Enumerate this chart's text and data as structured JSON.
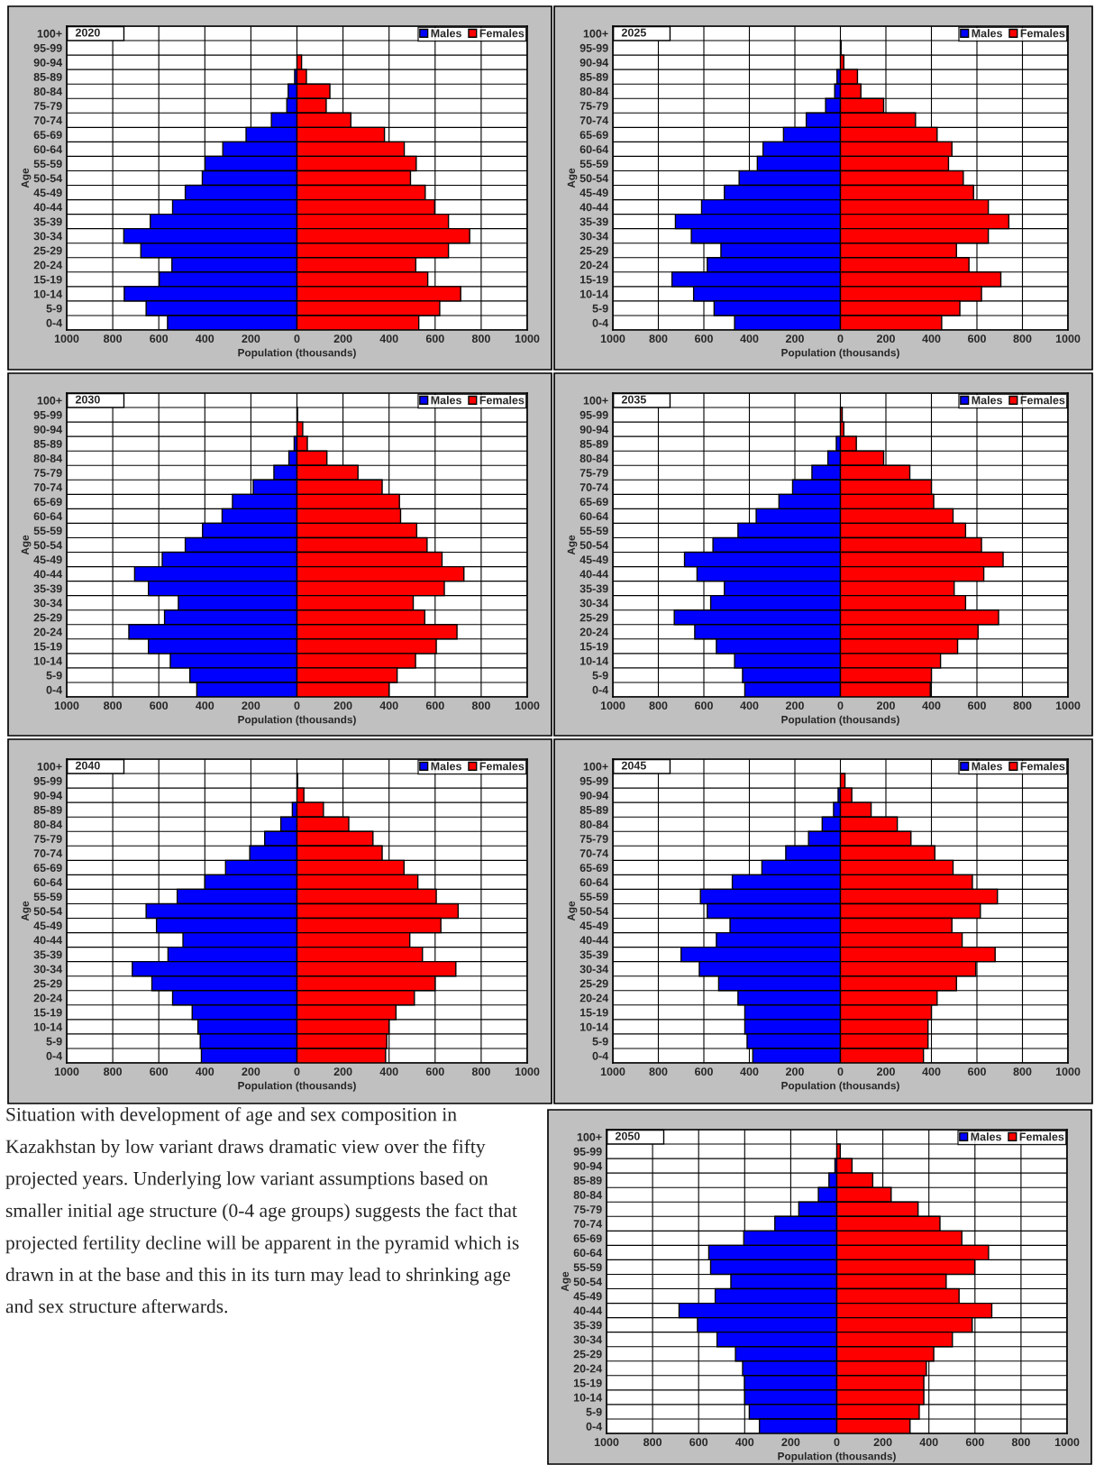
{
  "chart_data": [
    {
      "type": "bar",
      "orientation": "horizontal",
      "stacked": true,
      "title": "2020",
      "xlabel": "Population (thousands)",
      "ylabel": "Age",
      "categories": [
        "100+",
        "95-99",
        "90-94",
        "85-89",
        "80-84",
        "75-79",
        "70-74",
        "65-69",
        "60-64",
        "55-59",
        "50-54",
        "45-49",
        "40-44",
        "35-39",
        "30-34",
        "25-29",
        "20-24",
        "15-19",
        "10-14",
        "5-9",
        "0-4"
      ],
      "xlim": [
        -1000,
        1000
      ],
      "xticks": [
        {
          "value": -1000,
          "label": "1000"
        },
        {
          "value": -800,
          "label": "800"
        },
        {
          "value": -600,
          "label": "600"
        },
        {
          "value": -400,
          "label": "400"
        },
        {
          "value": -200,
          "label": "200"
        },
        0,
        200,
        400,
        600,
        800,
        1000
      ],
      "grid": true,
      "legend": "top right",
      "series": [
        {
          "name": "Males",
          "color": "#0000ff",
          "values": [
            0,
            0,
            0,
            -10,
            -38,
            -44,
            -111,
            -221,
            -322,
            -399,
            -411,
            -485,
            -540,
            -637,
            -752,
            -678,
            -543,
            -598,
            -750,
            -655,
            -562
          ]
        },
        {
          "name": "Females",
          "color": "#ff0000",
          "values": [
            0,
            0,
            20,
            41,
            143,
            127,
            234,
            380,
            466,
            518,
            493,
            557,
            598,
            658,
            750,
            658,
            516,
            568,
            711,
            620,
            529
          ]
        }
      ]
    },
    {
      "type": "bar",
      "orientation": "horizontal",
      "stacked": true,
      "title": "2025",
      "xlabel": "Population (thousands)",
      "ylabel": "Age",
      "categories": [
        "100+",
        "95-99",
        "90-94",
        "85-89",
        "80-84",
        "75-79",
        "70-74",
        "65-69",
        "60-64",
        "55-59",
        "50-54",
        "45-49",
        "40-44",
        "35-39",
        "30-34",
        "25-29",
        "20-24",
        "15-19",
        "10-14",
        "5-9",
        "0-4"
      ],
      "xlim": [
        -1000,
        1000
      ],
      "xticks": [
        {
          "value": -1000,
          "label": "1000"
        },
        {
          "value": -800,
          "label": "800"
        },
        {
          "value": -600,
          "label": "600"
        },
        {
          "value": -400,
          "label": "400"
        },
        {
          "value": -200,
          "label": "200"
        },
        0,
        200,
        400,
        600,
        800,
        1000
      ],
      "grid": true,
      "legend": "top right",
      "series": [
        {
          "name": "Males",
          "color": "#0000ff",
          "values": [
            0,
            0,
            0,
            -15,
            -25,
            -65,
            -150,
            -250,
            -340,
            -365,
            -445,
            -510,
            -610,
            -725,
            -655,
            -525,
            -585,
            -740,
            -645,
            -555,
            -465
          ]
        },
        {
          "name": "Females",
          "color": "#ff0000",
          "values": [
            0,
            3,
            15,
            75,
            90,
            190,
            330,
            425,
            490,
            475,
            540,
            585,
            650,
            740,
            650,
            510,
            565,
            705,
            620,
            525,
            445
          ]
        }
      ]
    },
    {
      "type": "bar",
      "orientation": "horizontal",
      "stacked": true,
      "title": "2030",
      "xlabel": "Population (thousands)",
      "ylabel": "Age",
      "categories": [
        "100+",
        "95-99",
        "90-94",
        "85-89",
        "80-84",
        "75-79",
        "70-74",
        "65-69",
        "60-64",
        "55-59",
        "50-54",
        "45-49",
        "40-44",
        "35-39",
        "30-34",
        "25-29",
        "20-24",
        "15-19",
        "10-14",
        "5-9",
        "0-4"
      ],
      "xlim": [
        -1000,
        1000
      ],
      "xticks": [
        {
          "value": -1000,
          "label": "1000"
        },
        {
          "value": -800,
          "label": "800"
        },
        {
          "value": -600,
          "label": "600"
        },
        {
          "value": -400,
          "label": "400"
        },
        {
          "value": -200,
          "label": "200"
        },
        0,
        200,
        400,
        600,
        800,
        1000
      ],
      "grid": true,
      "legend": "top right",
      "series": [
        {
          "name": "Males",
          "color": "#0000ff",
          "values": [
            0,
            0,
            0,
            -12,
            -35,
            -100,
            -190,
            -280,
            -325,
            -410,
            -485,
            -585,
            -705,
            -645,
            -515,
            -575,
            -730,
            -645,
            -550,
            -465,
            -435
          ]
        },
        {
          "name": "Females",
          "color": "#ff0000",
          "values": [
            0,
            3,
            25,
            45,
            130,
            265,
            370,
            445,
            450,
            520,
            565,
            630,
            725,
            640,
            505,
            555,
            695,
            605,
            515,
            435,
            400
          ]
        }
      ]
    },
    {
      "type": "bar",
      "orientation": "horizontal",
      "stacked": true,
      "title": "2035",
      "xlabel": "Population (thousands)",
      "ylabel": "Age",
      "categories": [
        "100+",
        "95-99",
        "90-94",
        "85-89",
        "80-84",
        "75-79",
        "70-74",
        "65-69",
        "60-64",
        "55-59",
        "50-54",
        "45-49",
        "40-44",
        "35-39",
        "30-34",
        "25-29",
        "20-24",
        "15-19",
        "10-14",
        "5-9",
        "0-4"
      ],
      "xlim": [
        -1000,
        1000
      ],
      "xticks": [
        {
          "value": -1000,
          "label": "1000"
        },
        {
          "value": -800,
          "label": "800"
        },
        {
          "value": -600,
          "label": "600"
        },
        {
          "value": -400,
          "label": "400"
        },
        {
          "value": -200,
          "label": "200"
        },
        0,
        200,
        400,
        600,
        800,
        1000
      ],
      "grid": true,
      "legend": "top right",
      "series": [
        {
          "name": "Males",
          "color": "#0000ff",
          "values": [
            0,
            0,
            0,
            -18,
            -55,
            -125,
            -210,
            -270,
            -370,
            -450,
            -560,
            -685,
            -630,
            -510,
            -570,
            -730,
            -640,
            -545,
            -465,
            -430,
            -420
          ]
        },
        {
          "name": "Females",
          "color": "#ff0000",
          "values": [
            0,
            8,
            15,
            70,
            190,
            305,
            400,
            410,
            495,
            550,
            620,
            715,
            630,
            500,
            550,
            695,
            605,
            515,
            440,
            400,
            395
          ]
        }
      ]
    },
    {
      "type": "bar",
      "orientation": "horizontal",
      "stacked": true,
      "title": "2040",
      "xlabel": "Population (thousands)",
      "ylabel": "Age",
      "categories": [
        "100+",
        "95-99",
        "90-94",
        "85-89",
        "80-84",
        "75-79",
        "70-74",
        "65-69",
        "60-64",
        "55-59",
        "50-54",
        "45-49",
        "40-44",
        "35-39",
        "30-34",
        "25-29",
        "20-24",
        "15-19",
        "10-14",
        "5-9",
        "0-4"
      ],
      "xlim": [
        -1000,
        1000
      ],
      "xticks": [
        {
          "value": -1000,
          "label": "1000"
        },
        {
          "value": -800,
          "label": "800"
        },
        {
          "value": -600,
          "label": "600"
        },
        {
          "value": -400,
          "label": "400"
        },
        {
          "value": -200,
          "label": "200"
        },
        0,
        200,
        400,
        600,
        800,
        1000
      ],
      "grid": true,
      "legend": "top right",
      "series": [
        {
          "name": "Males",
          "color": "#0000ff",
          "values": [
            0,
            0,
            0,
            -20,
            -70,
            -140,
            -205,
            -310,
            -400,
            -520,
            -655,
            -610,
            -495,
            -560,
            -715,
            -630,
            -540,
            -455,
            -430,
            -420,
            -415
          ]
        },
        {
          "name": "Females",
          "color": "#ff0000",
          "values": [
            0,
            3,
            30,
            115,
            225,
            330,
            370,
            465,
            525,
            605,
            700,
            625,
            490,
            545,
            690,
            600,
            510,
            430,
            400,
            390,
            385
          ]
        }
      ]
    },
    {
      "type": "bar",
      "orientation": "horizontal",
      "stacked": true,
      "title": "2045",
      "xlabel": "Population (thousands)",
      "ylabel": "Age",
      "categories": [
        "100+",
        "95-99",
        "90-94",
        "85-89",
        "80-84",
        "75-79",
        "70-74",
        "65-69",
        "60-64",
        "55-59",
        "50-54",
        "45-49",
        "40-44",
        "35-39",
        "30-34",
        "25-29",
        "20-24",
        "15-19",
        "10-14",
        "5-9",
        "0-4"
      ],
      "xlim": [
        -1000,
        1000
      ],
      "xticks": [
        {
          "value": -1000,
          "label": "1000"
        },
        {
          "value": -800,
          "label": "800"
        },
        {
          "value": -600,
          "label": "600"
        },
        {
          "value": -400,
          "label": "400"
        },
        {
          "value": -200,
          "label": "200"
        },
        0,
        200,
        400,
        600,
        800,
        1000
      ],
      "grid": true,
      "legend": "top right",
      "series": [
        {
          "name": "Males",
          "color": "#0000ff",
          "values": [
            0,
            0,
            -10,
            -30,
            -80,
            -140,
            -240,
            -345,
            -475,
            -615,
            -585,
            -485,
            -545,
            -700,
            -620,
            -535,
            -450,
            -420,
            -420,
            -410,
            -385
          ]
        },
        {
          "name": "Females",
          "color": "#ff0000",
          "values": [
            0,
            20,
            50,
            135,
            250,
            310,
            415,
            495,
            580,
            690,
            615,
            490,
            535,
            680,
            595,
            510,
            425,
            400,
            385,
            385,
            365
          ]
        }
      ]
    },
    {
      "type": "bar",
      "orientation": "horizontal",
      "stacked": true,
      "title": "2050",
      "xlabel": "Population (thousands)",
      "ylabel": "Age",
      "categories": [
        "100+",
        "95-99",
        "90-94",
        "85-89",
        "80-84",
        "75-79",
        "70-74",
        "65-69",
        "60-64",
        "55-59",
        "50-54",
        "45-49",
        "40-44",
        "35-39",
        "30-34",
        "25-29",
        "20-24",
        "15-19",
        "10-14",
        "5-9",
        "0-4"
      ],
      "xlim": [
        -1000,
        1000
      ],
      "xticks": [
        {
          "value": -1000,
          "label": "1000"
        },
        {
          "value": -800,
          "label": "800"
        },
        {
          "value": -600,
          "label": "600"
        },
        {
          "value": -400,
          "label": "400"
        },
        {
          "value": -200,
          "label": "200"
        },
        0,
        200,
        400,
        600,
        800,
        1000
      ],
      "grid": true,
      "legend": "top right",
      "series": [
        {
          "name": "Males",
          "color": "#0000ff",
          "values": [
            0,
            0,
            -8,
            -34,
            -80,
            -165,
            -269,
            -404,
            -556,
            -548,
            -460,
            -528,
            -685,
            -605,
            -520,
            -440,
            -409,
            -401,
            -400,
            -380,
            -336
          ]
        },
        {
          "name": "Females",
          "color": "#ff0000",
          "values": [
            0,
            15,
            66,
            156,
            236,
            353,
            448,
            543,
            659,
            599,
            475,
            531,
            673,
            588,
            502,
            421,
            389,
            378,
            378,
            358,
            318
          ]
        }
      ],
      "annotations": [
        "Situation with development of age and sex composition in Kazakhstan by low variant draws dramatic view over the fifty projected years. Underlying low variant assumptions based on smaller initial age structure (0-4 age groups) suggests the fact that projected fertility decline will be apparent in the pyramid which is drawn in at the base and this in its turn may lead to shrinking age and sex structure afterwards."
      ]
    }
  ]
}
